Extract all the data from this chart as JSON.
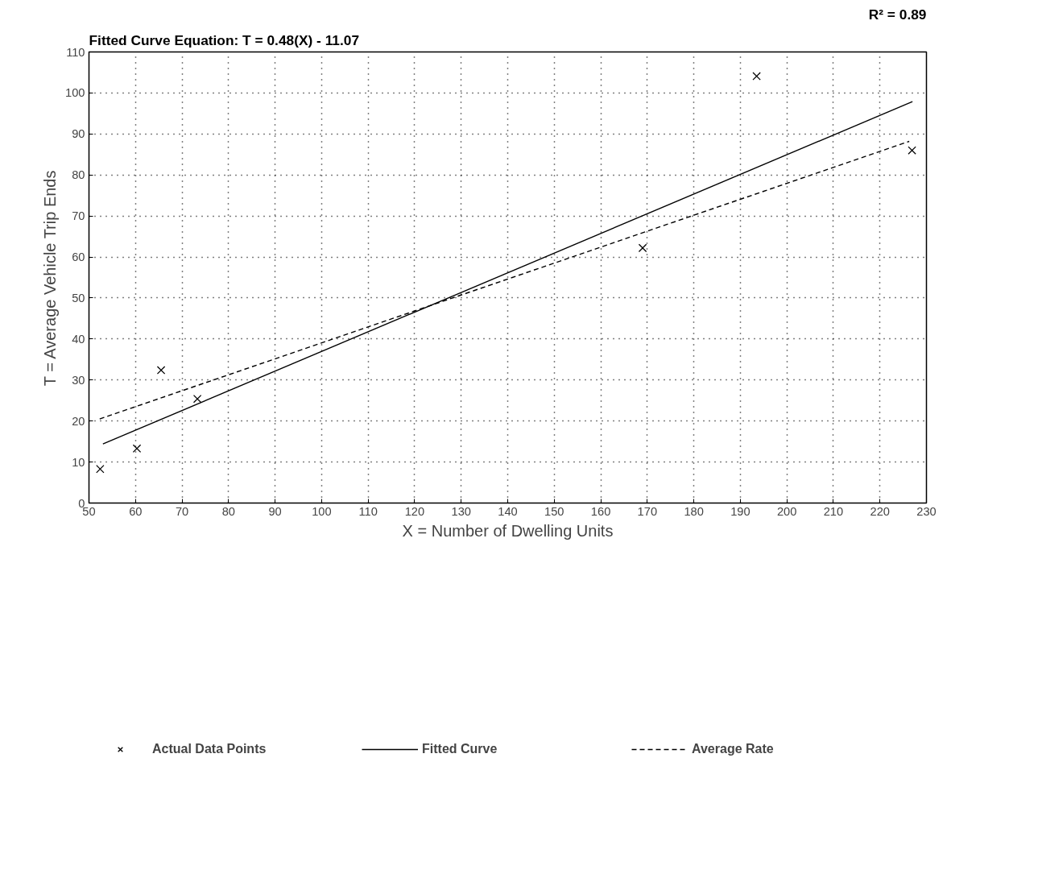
{
  "chart_data": {
    "type": "scatter",
    "xlabel": "X = Number of Dwelling Units",
    "ylabel": "T = Average Vehicle Trip Ends",
    "xlim": [
      50,
      230
    ],
    "xticks": [
      50,
      60,
      70,
      80,
      90,
      100,
      110,
      120,
      130,
      140,
      150,
      160,
      170,
      180,
      190,
      200,
      210,
      220,
      230
    ],
    "ylim": [
      0,
      110
    ],
    "yticks": [
      0,
      10,
      20,
      30,
      40,
      50,
      60,
      70,
      80,
      90,
      100,
      110
    ],
    "grid": true,
    "legend": "bottom",
    "series": [
      {
        "name": "Actual Data Points",
        "marker": "cross",
        "color": "#000000",
        "x": [
          52.4,
          60.3,
          65.5,
          73.3,
          169,
          193.5,
          226.9
        ],
        "values": [
          8.3,
          13.3,
          32.4,
          25.4,
          62.2,
          104.1,
          86
        ]
      },
      {
        "name": "Fitted Curve",
        "type": "line",
        "line_style": "solid",
        "color": "#000000",
        "x": [
          53,
          227
        ],
        "values": [
          14.4,
          97.9
        ]
      },
      {
        "name": "Average Rate",
        "type": "line",
        "line_style": "dashed",
        "color": "#000000",
        "x": [
          52.3,
          226.3
        ],
        "values": [
          20.5,
          88.2
        ]
      }
    ],
    "annotations": [
      "Fitted Curve Equation:  T = 0.48(X) - 11.07",
      "R² = 0.89"
    ]
  }
}
